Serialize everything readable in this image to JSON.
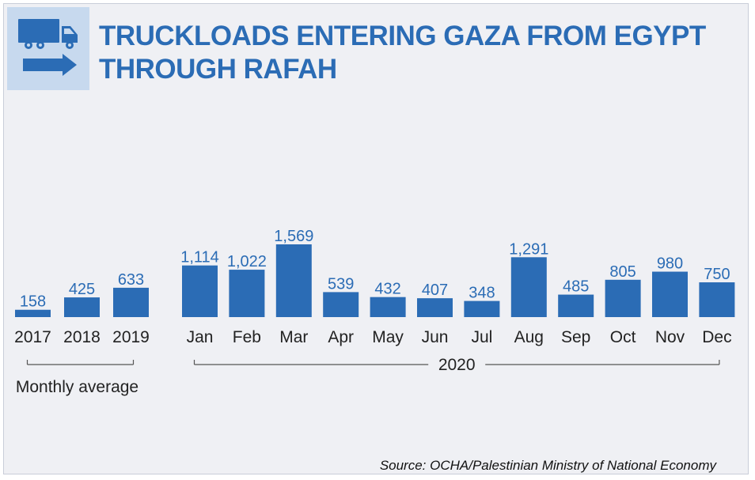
{
  "header": {
    "icon": "truck-arrow-icon",
    "title_line1": "TRUCKLOADS ENTERING GAZA FROM EGYPT",
    "title_line2": "THROUGH RAFAH"
  },
  "colors": {
    "bar": "#2b6cb5",
    "title": "#2b6cb5",
    "value_label": "#2b6cb5",
    "icon": "#2b6cb5",
    "icon_bg": "#c7d9ee",
    "panel_bg": "#eff0f4",
    "axis_text": "#222222"
  },
  "chart_data": {
    "type": "bar",
    "title": "TRUCKLOADS ENTERING GAZA FROM EGYPT THROUGH RAFAH",
    "xlabel": "",
    "ylabel": "",
    "ylim": [
      0,
      1569
    ],
    "grid": false,
    "groups": [
      {
        "label": "Monthly average",
        "categories": [
          "2017",
          "2018",
          "2019"
        ],
        "values": [
          158,
          425,
          633
        ],
        "value_labels": [
          "158",
          "425",
          "633"
        ]
      },
      {
        "label": "2020",
        "categories": [
          "Jan",
          "Feb",
          "Mar",
          "Apr",
          "May",
          "Jun",
          "Jul",
          "Aug",
          "Sep",
          "Oct",
          "Nov",
          "Dec"
        ],
        "values": [
          1114,
          1022,
          1569,
          539,
          432,
          407,
          348,
          1291,
          485,
          805,
          980,
          750
        ],
        "value_labels": [
          "1,114",
          "1,022",
          "1,569",
          "539",
          "432",
          "407",
          "348",
          "1,291",
          "485",
          "805",
          "980",
          "750"
        ]
      }
    ]
  },
  "footer": {
    "source": "Source: OCHA/Palestinian Ministry of National Economy"
  }
}
